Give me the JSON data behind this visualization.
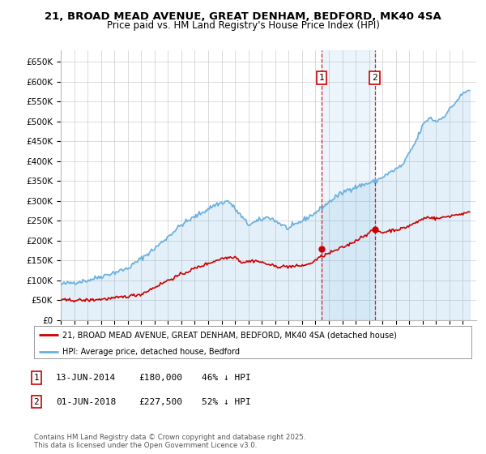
{
  "title_line1": "21, BROAD MEAD AVENUE, GREAT DENHAM, BEDFORD, MK40 4SA",
  "title_line2": "Price paid vs. HM Land Registry's House Price Index (HPI)",
  "ylim": [
    0,
    680000
  ],
  "xlim_start": 1995,
  "xlim_end": 2026,
  "yticks": [
    0,
    50000,
    100000,
    150000,
    200000,
    250000,
    300000,
    350000,
    400000,
    450000,
    500000,
    550000,
    600000,
    650000
  ],
  "ytick_labels": [
    "£0",
    "£50K",
    "£100K",
    "£150K",
    "£200K",
    "£250K",
    "£300K",
    "£350K",
    "£400K",
    "£450K",
    "£500K",
    "£550K",
    "£600K",
    "£650K"
  ],
  "hpi_color": "#6ab0e0",
  "price_color": "#cc0000",
  "transaction1_date": 2014.45,
  "transaction1_price": 180000,
  "transaction2_date": 2018.42,
  "transaction2_price": 227500,
  "transaction1_label": "1",
  "transaction2_label": "2",
  "legend_line1": "21, BROAD MEAD AVENUE, GREAT DENHAM, BEDFORD, MK40 4SA (detached house)",
  "legend_line2": "HPI: Average price, detached house, Bedford",
  "ann1_date": "13-JUN-2014",
  "ann1_price": "£180,000",
  "ann1_pct": "46% ↓ HPI",
  "ann2_date": "01-JUN-2018",
  "ann2_price": "£227,500",
  "ann2_pct": "52% ↓ HPI",
  "footnote": "Contains HM Land Registry data © Crown copyright and database right 2025.\nThis data is licensed under the Open Government Licence v3.0.",
  "background_color": "#ffffff",
  "grid_color": "#cccccc"
}
